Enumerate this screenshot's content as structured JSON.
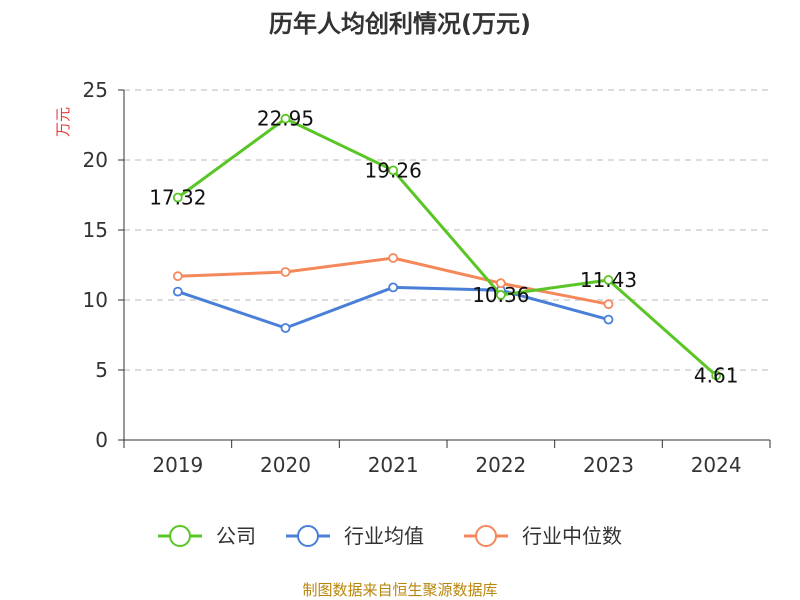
{
  "chart_data": {
    "type": "line",
    "title": "历年人均创利情况(万元)",
    "ylabel": "万元",
    "ylim": [
      0,
      25
    ],
    "yticks": [
      0,
      5,
      10,
      15,
      20,
      25
    ],
    "grid": true,
    "legend_position": "bottom",
    "categories": [
      "2019",
      "2020",
      "2021",
      "2022",
      "2023",
      "2024"
    ],
    "series": [
      {
        "name": "公司",
        "color": "#5ac626",
        "values": [
          17.32,
          22.95,
          19.26,
          10.36,
          11.43,
          4.61
        ],
        "labels": [
          "17.32",
          "22.95",
          "19.26",
          "10.36",
          "11.43",
          "4.61"
        ]
      },
      {
        "name": "行业均值",
        "color": "#4a7fd8",
        "values": [
          10.6,
          8.0,
          10.9,
          10.7,
          8.6,
          null
        ]
      },
      {
        "name": "行业中位数",
        "color": "#f5885a",
        "values": [
          11.7,
          12.0,
          13.0,
          11.2,
          9.7,
          null
        ]
      }
    ]
  },
  "source": "制图数据来自恒生聚源数据库"
}
